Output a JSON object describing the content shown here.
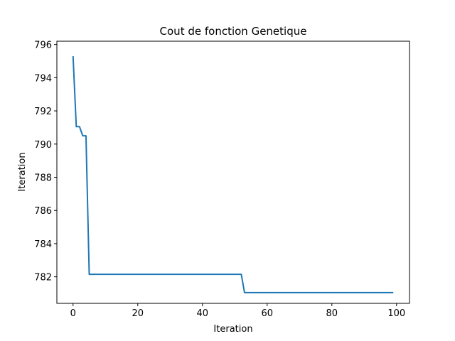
{
  "chart_data": {
    "type": "line",
    "title": "Cout de fonction Genetique",
    "xlabel": "Iteration",
    "ylabel": "Iteration",
    "xlim": [
      -5,
      104
    ],
    "ylim": [
      780.4,
      796.2
    ],
    "xticks": [
      0,
      20,
      40,
      60,
      80,
      100
    ],
    "yticks": [
      782,
      784,
      786,
      788,
      790,
      792,
      794,
      796
    ],
    "xtick_labels": [
      "0",
      "20",
      "40",
      "60",
      "80",
      "100"
    ],
    "ytick_labels": [
      "782",
      "784",
      "786",
      "788",
      "790",
      "792",
      "794",
      "796"
    ],
    "grid": false,
    "series": [
      {
        "color": "#1f77b4",
        "x": [
          0,
          1,
          2,
          3,
          4,
          5,
          52,
          53,
          99
        ],
        "y": [
          795.3,
          791.05,
          791.05,
          790.5,
          790.5,
          782.15,
          782.15,
          781.05,
          781.05
        ]
      }
    ]
  }
}
